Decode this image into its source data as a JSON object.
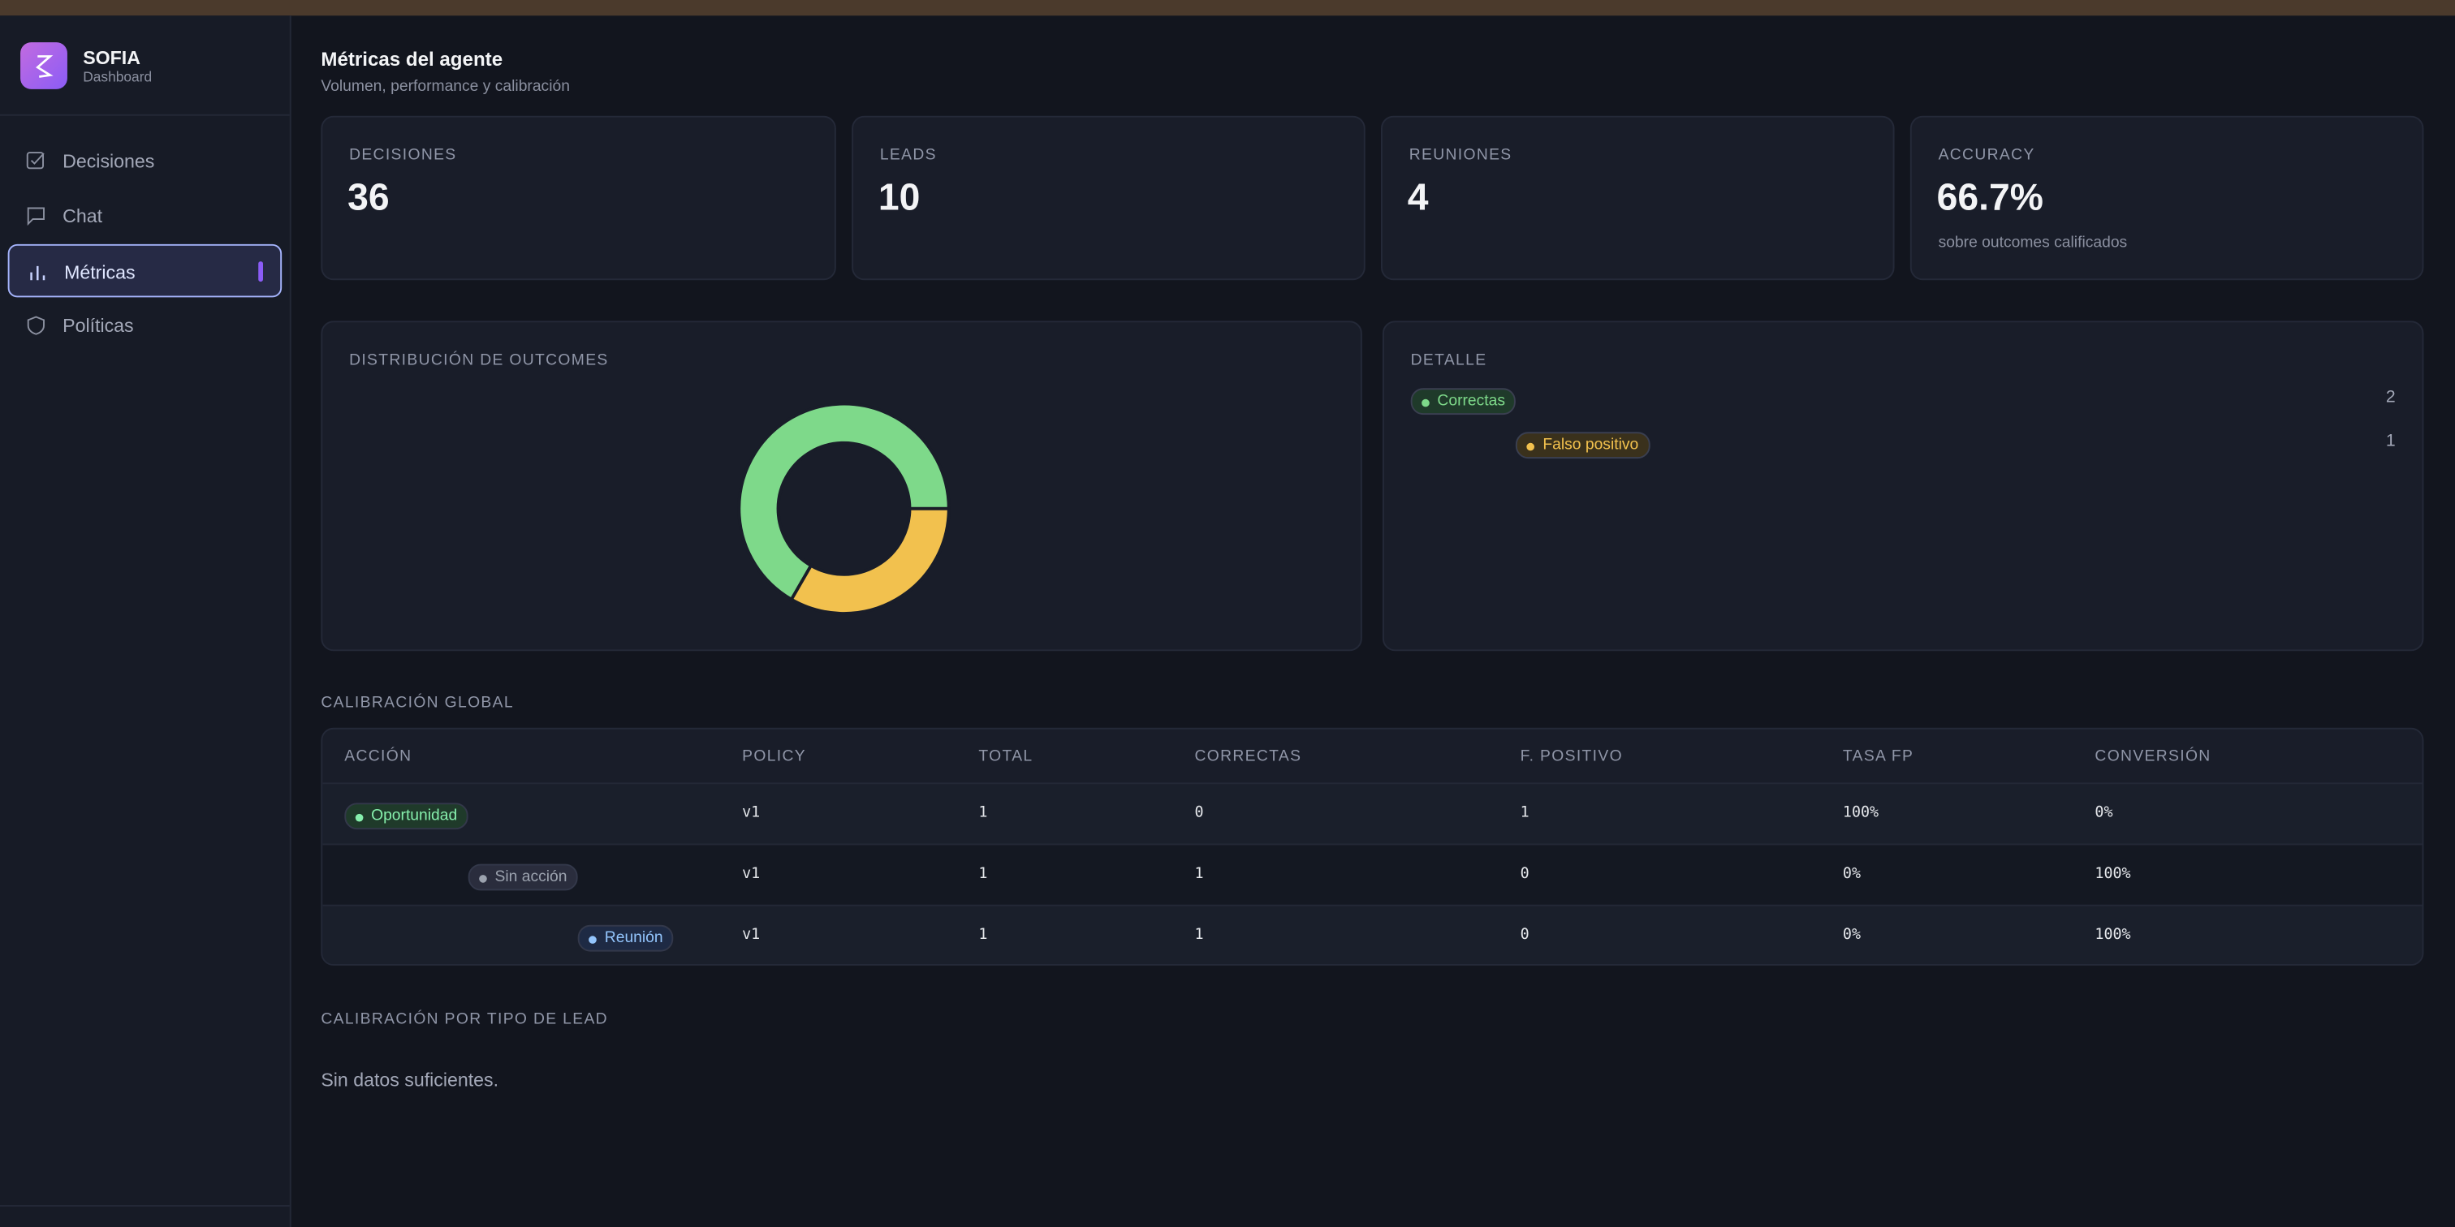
{
  "sidebar": {
    "brand": "SOFIA",
    "subtitle": "Dashboard",
    "nav": [
      "Decisiones",
      "Chat",
      "Métricas",
      "Políticas"
    ]
  },
  "header": {
    "title": "Métricas del agente",
    "subtitle": "Volumen, performance y calibración"
  },
  "kpis": [
    {
      "label": "DECISIONES",
      "value": "36"
    },
    {
      "label": "LEADS",
      "value": "10"
    },
    {
      "label": "REUNIONES",
      "value": "4"
    },
    {
      "label": "ACCURACY",
      "value": "66.7%",
      "note": "sobre outcomes calificados"
    }
  ],
  "outcomes": {
    "title": "DISTRIBUCIÓN DE OUTCOMES",
    "detail_title": "DETALLE",
    "items": [
      {
        "label": "Correctas",
        "value": 2,
        "color": "#7ed98a"
      },
      {
        "label": "Falso positivo",
        "value": 1,
        "color": "#f2c14e"
      }
    ]
  },
  "table": {
    "title": "CALIBRACIÓN GLOBAL",
    "columns": [
      "ACCIÓN",
      "POLICY",
      "TOTAL",
      "CORRECTAS",
      "F. POSITIVO",
      "TASA FP",
      "CONVERSIÓN"
    ],
    "rows": [
      [
        "Oportunidad",
        "v1",
        "1",
        "0",
        "1",
        "100%",
        "0%"
      ],
      [
        "Sin acción",
        "v1",
        "1",
        "1",
        "0",
        "0%",
        "100%"
      ],
      [
        "Reunión",
        "v1",
        "1",
        "1",
        "0",
        "0%",
        "100%"
      ]
    ]
  },
  "lead_section": {
    "title": "CALIBRACIÓN POR TIPO DE LEAD",
    "empty": "Sin datos suficientes."
  }
}
